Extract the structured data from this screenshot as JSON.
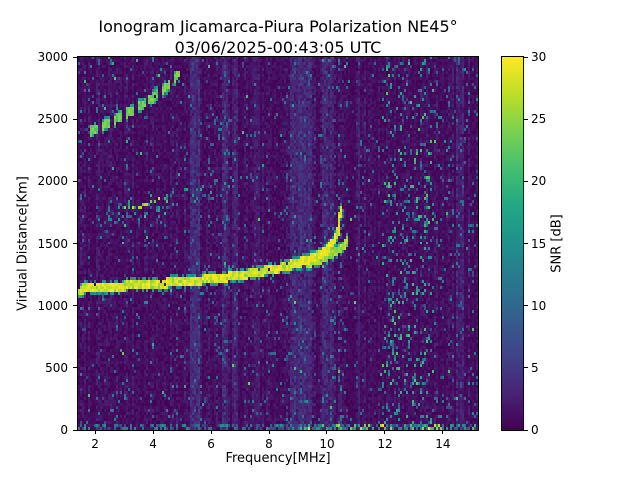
{
  "chart_data": {
    "type": "heatmap",
    "title": "Ionogram Jicamarca-Piura Polarization NE45°",
    "subtitle": "03/06/2025-00:43:05 UTC",
    "xlabel": "Frequency[MHz]",
    "ylabel": "Virtual Distance[Km]",
    "colorbar_label": "SNR [dB]",
    "xlim": [
      1.41,
      15.21
    ],
    "ylim": [
      0,
      3000
    ],
    "xticks": [
      2,
      4,
      6,
      8,
      10,
      12,
      14
    ],
    "yticks": [
      0,
      500,
      1000,
      1500,
      2000,
      2500,
      3000
    ],
    "cticks": [
      0,
      5,
      10,
      15,
      20,
      25,
      30
    ],
    "clim": [
      0,
      30
    ],
    "grid": false,
    "legend": false,
    "colormap": "viridis",
    "colormap_stops": [
      [
        0.0,
        68,
        1,
        84
      ],
      [
        0.1,
        72,
        36,
        117
      ],
      [
        0.2,
        64,
        67,
        135
      ],
      [
        0.3,
        52,
        94,
        141
      ],
      [
        0.4,
        41,
        120,
        142
      ],
      [
        0.5,
        32,
        144,
        140
      ],
      [
        0.6,
        34,
        167,
        132
      ],
      [
        0.7,
        68,
        190,
        112
      ],
      [
        0.8,
        121,
        209,
        81
      ],
      [
        0.9,
        189,
        222,
        38
      ],
      [
        1.0,
        253,
        231,
        36
      ]
    ],
    "background_color": "#ffffff",
    "noise": {
      "base_snr": 1.1,
      "speckle_density": 0.045,
      "speckle_snr": [
        5,
        14
      ],
      "rare_bright_density": 0.004,
      "rare_bright_snr": [
        14,
        24
      ]
    },
    "rfi_bands": [
      {
        "freq": [
          5.25,
          5.6
        ],
        "extra_snr": 3.6
      },
      {
        "freq": [
          6.35,
          6.6
        ],
        "extra_snr": 2.2
      },
      {
        "freq": [
          6.75,
          6.95
        ],
        "extra_snr": 1.8
      },
      {
        "freq": [
          7.45,
          7.7
        ],
        "extra_snr": 1.4
      },
      {
        "freq": [
          8.7,
          9.45
        ],
        "extra_snr": 2.8
      },
      {
        "freq": [
          9.8,
          10.25
        ],
        "extra_snr": 2.2
      },
      {
        "freq": [
          11.05,
          11.15
        ],
        "extra_snr": 2.6
      },
      {
        "freq": [
          14.45,
          14.75
        ],
        "extra_snr": 1.6
      }
    ],
    "speckle_regions": [
      {
        "freq": [
          11.9,
          13.7
        ],
        "range": [
          0,
          3000
        ],
        "density": 0.1,
        "snr": [
          8,
          22
        ]
      },
      {
        "freq": [
          10.0,
          10.6
        ],
        "range": [
          0,
          3000
        ],
        "density": 0.05,
        "snr": [
          8,
          16
        ]
      },
      {
        "freq": [
          13.7,
          15.21
        ],
        "range": [
          0,
          3000
        ],
        "density": 0.03,
        "snr": [
          7,
          16
        ]
      }
    ],
    "bottom_strip": {
      "range": [
        0,
        35
      ],
      "density": 0.5,
      "snr": [
        5,
        16
      ],
      "bright_after_freq": 9.0,
      "bright_density": 0.22,
      "bright_snr": [
        15,
        30
      ]
    },
    "traces": [
      {
        "name": "F-region echo O-mode",
        "style": "solid",
        "snr": 30,
        "width_km": 26,
        "points": [
          [
            1.45,
            1125
          ],
          [
            2.0,
            1140
          ],
          [
            3.0,
            1152
          ],
          [
            4.0,
            1168
          ],
          [
            5.0,
            1185
          ],
          [
            6.0,
            1207
          ],
          [
            7.0,
            1237
          ],
          [
            8.0,
            1278
          ],
          [
            9.0,
            1333
          ],
          [
            9.6,
            1383
          ],
          [
            10.0,
            1447
          ],
          [
            10.25,
            1520
          ],
          [
            10.4,
            1610
          ],
          [
            10.47,
            1780
          ]
        ]
      },
      {
        "name": "F-region echo bright core",
        "style": "solid",
        "snr": 30,
        "width_km": 42,
        "points": [
          [
            8.8,
            1320
          ],
          [
            9.3,
            1355
          ],
          [
            9.8,
            1405
          ],
          [
            10.1,
            1460
          ],
          [
            10.3,
            1530
          ]
        ]
      },
      {
        "name": "F-region echo X-mode",
        "style": "solid",
        "snr": 28,
        "width_km": 16,
        "points": [
          [
            9.3,
            1325
          ],
          [
            9.9,
            1380
          ],
          [
            10.3,
            1430
          ],
          [
            10.6,
            1470
          ],
          [
            10.72,
            1545
          ]
        ]
      },
      {
        "name": "second-hop diffuse echo",
        "style": "scatter",
        "snr": [
          8,
          18
        ],
        "density": 0.55,
        "spread_km": 90,
        "hot": [
          2.9,
          4.5
        ],
        "hot_snr": [
          19,
          28
        ],
        "points": [
          [
            1.8,
            1700
          ],
          [
            3.0,
            1760
          ],
          [
            4.0,
            1815
          ],
          [
            5.0,
            1870
          ],
          [
            6.0,
            1935
          ],
          [
            7.0,
            2010
          ],
          [
            7.9,
            2110
          ]
        ]
      },
      {
        "name": "third-hop dashed echo",
        "style": "dashed",
        "snr": 25,
        "width_km": 22,
        "points": [
          [
            1.85,
            2400
          ],
          [
            2.5,
            2470
          ],
          [
            3.2,
            2555
          ],
          [
            3.9,
            2650
          ],
          [
            4.5,
            2760
          ],
          [
            4.95,
            2870
          ]
        ]
      }
    ]
  }
}
